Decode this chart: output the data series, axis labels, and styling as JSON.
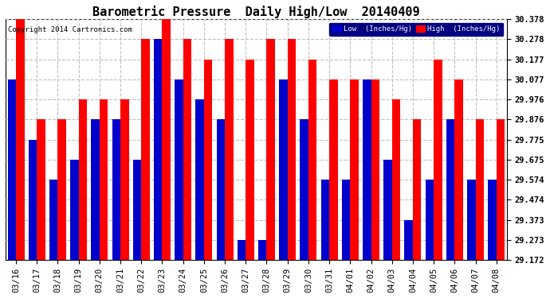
{
  "title": "Barometric Pressure  Daily High/Low  20140409",
  "copyright": "Copyright 2014 Cartronics.com",
  "ylabel_right_ticks": [
    29.172,
    29.273,
    29.373,
    29.474,
    29.574,
    29.675,
    29.775,
    29.876,
    29.976,
    30.077,
    30.177,
    30.278,
    30.378
  ],
  "ymin": 29.172,
  "ymax": 30.378,
  "dates": [
    "03/16",
    "03/17",
    "03/18",
    "03/19",
    "03/20",
    "03/21",
    "03/22",
    "03/23",
    "03/24",
    "03/25",
    "03/26",
    "03/27",
    "03/28",
    "03/29",
    "03/30",
    "03/31",
    "04/01",
    "04/02",
    "04/03",
    "04/04",
    "04/05",
    "04/06",
    "04/07",
    "04/08"
  ],
  "high": [
    30.378,
    29.876,
    29.876,
    29.976,
    29.976,
    29.976,
    30.278,
    30.378,
    30.278,
    30.177,
    30.278,
    30.177,
    30.278,
    30.278,
    30.177,
    30.077,
    30.077,
    30.077,
    29.976,
    29.876,
    30.177,
    30.077,
    29.876,
    29.876
  ],
  "low": [
    30.077,
    29.775,
    29.574,
    29.675,
    29.876,
    29.876,
    29.675,
    30.278,
    30.077,
    29.976,
    29.876,
    29.273,
    29.273,
    30.077,
    29.876,
    29.574,
    29.574,
    30.077,
    29.675,
    29.373,
    29.574,
    29.876,
    29.574,
    29.574
  ],
  "high_color": "#ff0000",
  "low_color": "#0000cc",
  "bg_color": "#ffffff",
  "grid_color": "#c0c0c0",
  "title_fontsize": 11,
  "tick_fontsize": 7.5,
  "legend_low_label": "Low  (Inches/Hg)",
  "legend_high_label": "High  (Inches/Hg)"
}
